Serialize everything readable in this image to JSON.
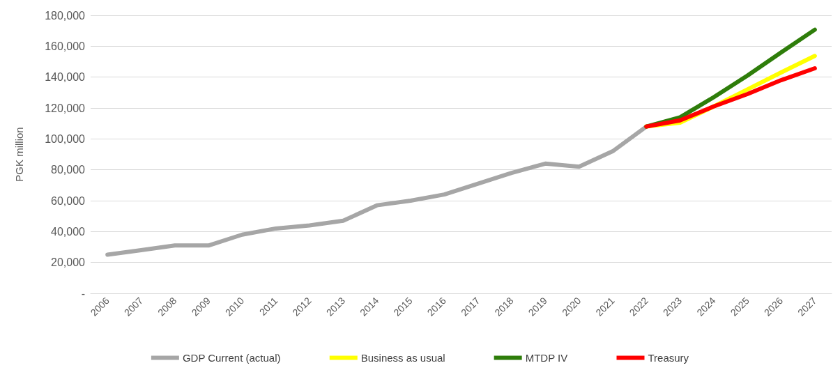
{
  "chart_data": {
    "type": "line",
    "ylabel": "PGK million",
    "categories": [
      "2006",
      "2007",
      "2008",
      "2009",
      "2010",
      "2011",
      "2012",
      "2013",
      "2014",
      "2015",
      "2016",
      "2017",
      "2018",
      "2019",
      "2020",
      "2021",
      "2022",
      "2023",
      "2024",
      "2025",
      "2026",
      "2027"
    ],
    "series": [
      {
        "name": "GDP Current (actual)",
        "color": "#a6a6a6",
        "values": [
          25000,
          28000,
          31000,
          31000,
          38000,
          42000,
          44000,
          47000,
          57000,
          60000,
          64000,
          71000,
          78000,
          84000,
          82000,
          92000,
          108000,
          null,
          null,
          null,
          null,
          null
        ]
      },
      {
        "name": "Business as usual",
        "color": "#ffff00",
        "values": [
          null,
          null,
          null,
          null,
          null,
          null,
          null,
          null,
          null,
          null,
          null,
          null,
          null,
          null,
          null,
          null,
          108000,
          110500,
          121000,
          132000,
          143000,
          153700
        ]
      },
      {
        "name": "MTDP IV",
        "color": "#2e7d0a",
        "values": [
          null,
          null,
          null,
          null,
          null,
          null,
          null,
          null,
          null,
          null,
          null,
          null,
          null,
          null,
          null,
          null,
          108000,
          114000,
          127000,
          141000,
          156000,
          170700
        ]
      },
      {
        "name": "Treasury",
        "color": "#ff0000",
        "values": [
          null,
          null,
          null,
          null,
          null,
          null,
          null,
          null,
          null,
          null,
          null,
          null,
          null,
          null,
          null,
          null,
          108000,
          112000,
          121000,
          129000,
          138000,
          145700
        ]
      }
    ],
    "ylim": [
      0,
      180000
    ],
    "yticks": [
      {
        "value": 0,
        "label": "-"
      },
      {
        "value": 20000,
        "label": "20,000"
      },
      {
        "value": 40000,
        "label": "40,000"
      },
      {
        "value": 60000,
        "label": "60,000"
      },
      {
        "value": 80000,
        "label": "80,000"
      },
      {
        "value": 100000,
        "label": "100,000"
      },
      {
        "value": 120000,
        "label": "120,000"
      },
      {
        "value": 140000,
        "label": "140,000"
      },
      {
        "value": 160000,
        "label": "160,000"
      },
      {
        "value": 180000,
        "label": "180,000"
      }
    ],
    "grid": "y",
    "legend": "bottom",
    "marker": "none",
    "line_style": "solid"
  }
}
